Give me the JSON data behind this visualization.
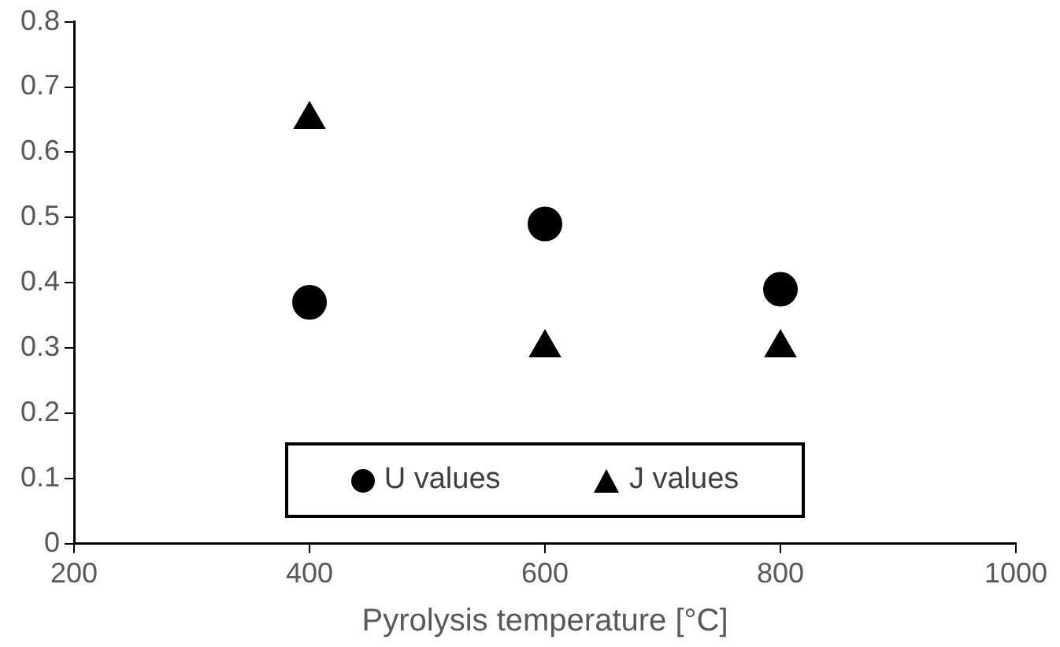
{
  "chart_data": {
    "type": "scatter",
    "xlabel": "Pyrolysis temperature [°C]",
    "x": [
      400,
      600,
      800
    ],
    "series": [
      {
        "name": "U values",
        "color": "#000000",
        "marker": "circle",
        "values": [
          0.37,
          0.49,
          0.39
        ]
      },
      {
        "name": "J values",
        "color": "#000000",
        "marker": "triangle",
        "values": [
          0.65,
          0.3,
          0.3
        ]
      }
    ],
    "xlim": [
      200,
      1000
    ],
    "xticks": [
      200,
      400,
      600,
      800,
      1000
    ],
    "ylim": [
      0,
      0.8
    ],
    "yticks": [
      0,
      0.1,
      0.2,
      0.3,
      0.4,
      0.5,
      0.6,
      0.7,
      0.8
    ],
    "grid": false,
    "legend": "bottom"
  }
}
